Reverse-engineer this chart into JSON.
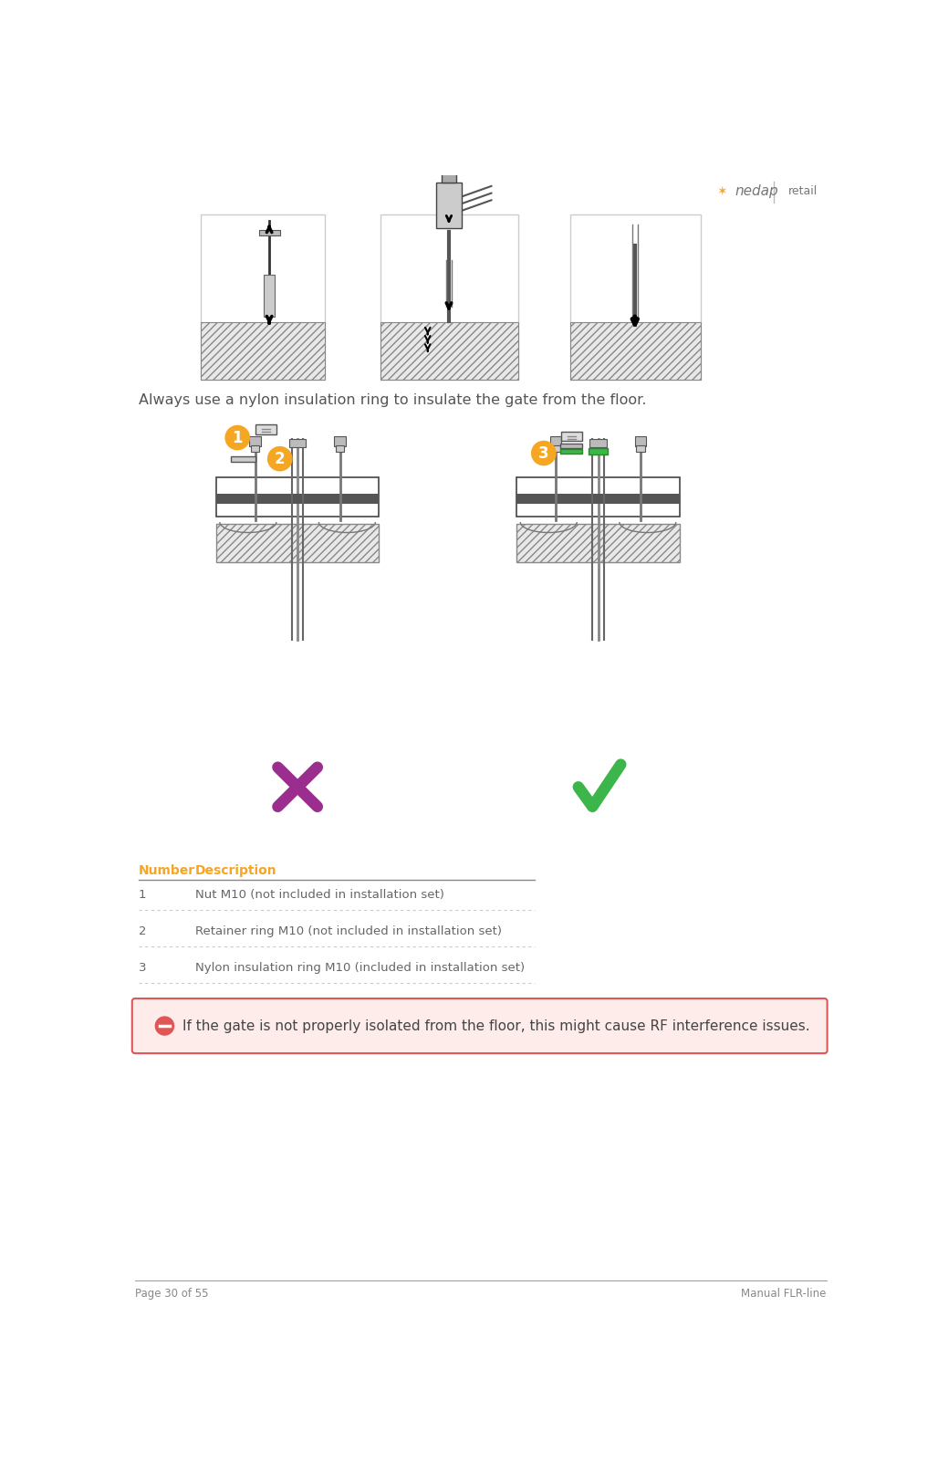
{
  "page_bg": "#ffffff",
  "footer_left": "Page 30 of 55",
  "footer_right": "Manual FLR-line",
  "footer_line_color": "#888888",
  "header_text_color": "#777777",
  "orange_color": "#F5A623",
  "intro_text": "Always use a nylon insulation ring to insulate the gate from the floor.",
  "intro_text_color": "#555555",
  "intro_fontsize": 11.5,
  "table_header_number": "Number",
  "table_header_desc": "Description",
  "table_header_color": "#F5A623",
  "table_header_fontsize": 10,
  "table_rows": [
    {
      "num": "1",
      "desc": "Nut M10 (not included in installation set)"
    },
    {
      "num": "2",
      "desc": "Retainer ring M10 (not included in installation set)"
    },
    {
      "num": "3",
      "desc": "Nylon insulation ring M10 (included in installation set)"
    }
  ],
  "table_fontsize": 9.5,
  "table_text_color": "#666666",
  "table_line_color": "#cccccc",
  "warning_bg": "#fdecea",
  "warning_border": "#e05555",
  "warning_text": "If the gate is not properly isolated from the floor, this might cause RF interference issues.",
  "warning_text_color": "#444444",
  "warning_fontsize": 11,
  "cross_color": "#9B2D8E",
  "check_color": "#3CB54A",
  "badge_orange": "#F5A623",
  "green_ring_color": "#3CB54A",
  "green_ring_border": "#2a8a2a",
  "hatch_facecolor": "#e8e8e8",
  "hatch_edgecolor": "#888888",
  "line_color": "#555555",
  "gate_color": "#dddddd",
  "bolt_color": "#888888"
}
